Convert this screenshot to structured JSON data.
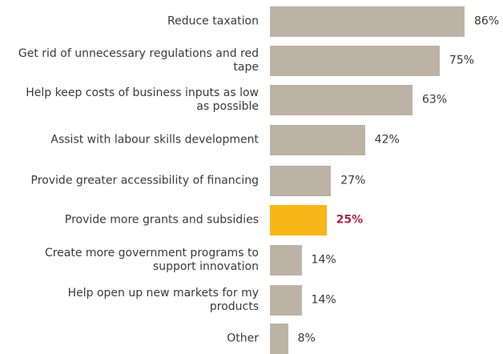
{
  "chart_data": {
    "type": "bar",
    "orientation": "horizontal",
    "categories": [
      "Reduce taxation",
      "Get rid of unnecessary regulations and red tape",
      "Help keep costs of business inputs as low as possible",
      "Assist with labour skills development",
      "Provide greater accessibility of financing",
      "Provide more grants and subsidies",
      "Create more government programs to support innovation",
      "Help open up new markets for my products",
      "Other"
    ],
    "category_lines": [
      [
        "Reduce taxation"
      ],
      [
        "Get rid of unnecessary regulations and red",
        "tape"
      ],
      [
        "Help keep costs of business inputs as low",
        "as possible"
      ],
      [
        "Assist with labour skills development"
      ],
      [
        "Provide greater accessibility of financing"
      ],
      [
        "Provide more grants and subsidies"
      ],
      [
        "Create more government programs to",
        "support innovation"
      ],
      [
        "Help open up new markets for my",
        "products"
      ],
      [
        "Other"
      ]
    ],
    "values": [
      86,
      75,
      63,
      42,
      27,
      25,
      14,
      14,
      8
    ],
    "value_labels": [
      "86%",
      "75%",
      "63%",
      "42%",
      "27%",
      "25%",
      "14%",
      "14%",
      "8%"
    ],
    "highlight_index": 5,
    "colors": {
      "bar": "#bdb2a6",
      "highlight_bar": "#f7b718",
      "highlight_label": "#b0234a",
      "text": "#3a3a3a"
    },
    "xlim": [
      0,
      100
    ],
    "grid": false,
    "legend": "none",
    "title": "",
    "xlabel": "",
    "ylabel": ""
  }
}
